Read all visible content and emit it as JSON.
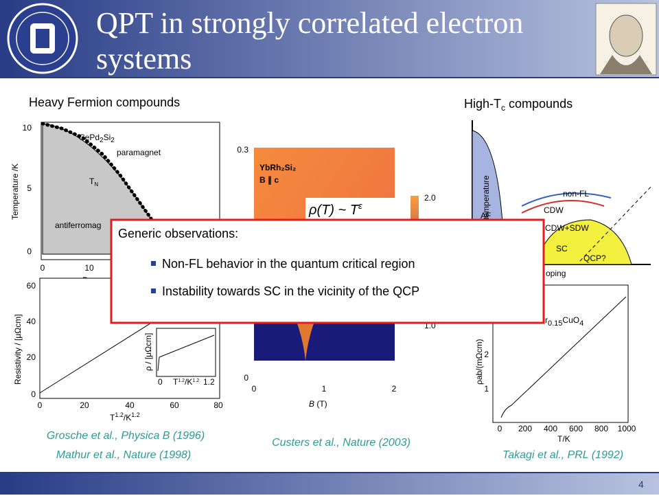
{
  "header": {
    "title_line1": "QPT in strongly correlated electron",
    "title_line2": "systems"
  },
  "left_heading": "Heavy Fermion compounds",
  "right_heading": {
    "main": "High-T",
    "sub": "c",
    "rest": " compounds"
  },
  "fig1": {
    "compound": {
      "a": "CePd",
      "b": "2",
      "c": "Si",
      "d": "2"
    },
    "paramagnet": "paramagnet",
    "tn": {
      "a": "T",
      "b": "N"
    },
    "afm": "antiferromag",
    "ylabel": "Temperature /K",
    "xlabel": "Pressur",
    "yticks": [
      "10",
      "5",
      "0"
    ],
    "xticks": [
      "0",
      "10"
    ]
  },
  "fig2": {
    "ylabel": "Resistivity / [μΩcm]",
    "xlabel": "T",
    "xexp": "1.2",
    "xunit": "/K",
    "xunit_exp": "1.2",
    "yticks": [
      "60",
      "40",
      "20",
      "0"
    ],
    "xticks": [
      "0",
      "20",
      "40",
      "60",
      "80"
    ],
    "inset_ylabel": "ρ / [μΩcm]",
    "inset_xlabel": "T",
    "inset_xexp": "1.2",
    "inset_xunit": "/K",
    "inset_xunit_exp": "1.2",
    "inset_xticks": [
      "0",
      "1.2"
    ]
  },
  "fig3": {
    "compound": "YbRh₂Si₂",
    "field": "B ∥ c",
    "formula": "ρ(T) ~ T",
    "formula_exp": "ε",
    "yticks": [
      "0.3",
      "0"
    ],
    "cbar": [
      "2.0",
      "1.0"
    ],
    "xticks": [
      "0",
      "1",
      "2"
    ],
    "xlabel": "B",
    "xunit": " (T)"
  },
  "fig4": {
    "ylabel": "temperature",
    "af": "AF",
    "nonfl": "non-FL",
    "cdw": "CDW",
    "cdwsdw": "CDW+SDW",
    "sc": "SC",
    "qcp": "QCP?",
    "xlabel": "oping"
  },
  "fig5": {
    "compound": {
      "a": "r",
      "b": "0.15",
      "c": "CuO",
      "d": "4"
    },
    "ylabel": "ρab/(mΩcm)",
    "yticks": [
      "2",
      "1"
    ],
    "xticks": [
      "0",
      "200",
      "400",
      "600",
      "800",
      "1000"
    ],
    "xlabel": "T/K"
  },
  "box": {
    "heading": "Generic observations:",
    "items": [
      "Non-FL behavior in the quantum critical region",
      "Instability towards SC in the vicinity of the QCP"
    ]
  },
  "citations": {
    "grosche": "Grosche et al., Physica B (1996)",
    "mathur": "Mathur et al., Nature (1998)",
    "custers": "Custers et al., Nature (2003)",
    "takagi": "Takagi et al., PRL (1992)"
  },
  "footer": {
    "page": "4"
  }
}
